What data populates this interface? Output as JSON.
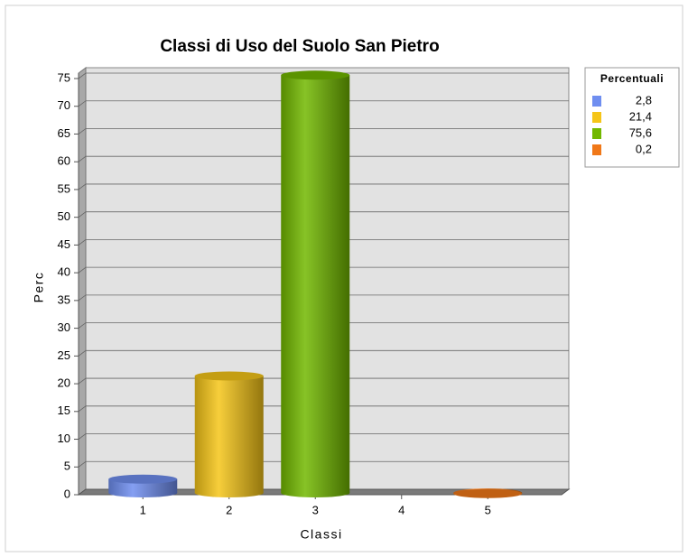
{
  "chart_data": {
    "type": "bar3d",
    "title": "Classi di Uso del Suolo San Pietro",
    "x_label": "Classi",
    "y_label": "Perc",
    "legend_title": "Percentuali",
    "categories": [
      "1",
      "2",
      "3",
      "4",
      "5"
    ],
    "values": [
      2.8,
      21.4,
      75.6,
      null,
      0.2
    ],
    "value_labels": [
      "2,8",
      "21,4",
      "75,6",
      null,
      "0,2"
    ],
    "colors": [
      "#6f8ef0",
      "#f5c518",
      "#72b800",
      null,
      "#f07818"
    ],
    "ylim": [
      0,
      75
    ],
    "yticks": [
      0,
      5,
      10,
      15,
      20,
      25,
      30,
      35,
      40,
      45,
      50,
      55,
      60,
      65,
      70,
      75
    ],
    "grid": true
  }
}
